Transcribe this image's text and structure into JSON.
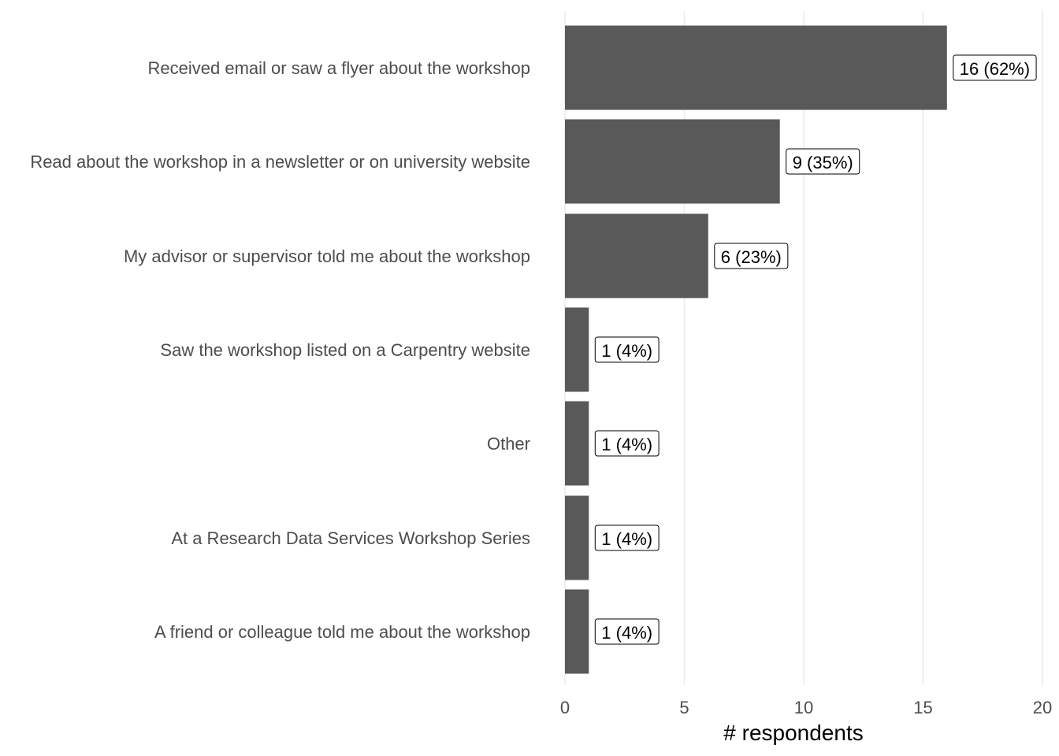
{
  "chart_data": {
    "type": "bar",
    "orientation": "horizontal",
    "categories": [
      "Received email or saw a flyer about the workshop",
      "Read about the workshop in a newsletter or on university website",
      "My advisor or supervisor told me about the workshop",
      "Saw the workshop listed on a Carpentry website",
      "Other",
      "At a Research Data Services Workshop Series",
      "A friend or colleague told me about the workshop"
    ],
    "values": [
      16,
      9,
      6,
      1,
      1,
      1,
      1
    ],
    "data_labels": [
      "16 (62%)",
      "9 (35%)",
      "6 (23%)",
      "1 (4%)",
      "1 (4%)",
      "1 (4%)",
      "1 (4%)"
    ],
    "xlabel": "# respondents",
    "ylabel": "",
    "xlim": [
      0,
      20
    ],
    "x_ticks": [
      0,
      5,
      10,
      15,
      20
    ],
    "x_tick_labels": [
      "0",
      "5",
      "10",
      "15",
      "20"
    ],
    "grid": "vertical major",
    "bar_color": "#595959",
    "gridline_color": "#ebebeb"
  }
}
